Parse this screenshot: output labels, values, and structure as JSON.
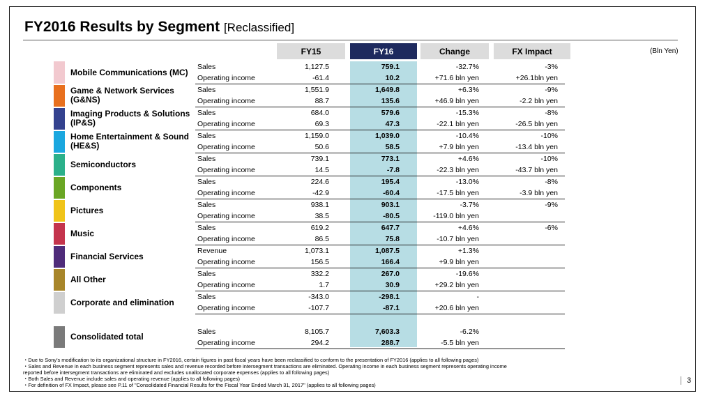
{
  "title": "FY2016  Results by Segment",
  "title_sub": "[Reclassified]",
  "unit": "(Bln Yen)",
  "headers": {
    "fy15": "FY15",
    "fy16": "FY16",
    "change": "Change",
    "fx": "FX Impact"
  },
  "segments": [
    {
      "name": "Mobile Communications (MC)",
      "color": "#f2c9cf",
      "rows": [
        {
          "metric": "Sales",
          "fy15": "1,127.5",
          "fy16": "759.1",
          "change": "-32.7%",
          "fx": "-3%"
        },
        {
          "metric": "Operating income",
          "fy15": "-61.4",
          "fy16": "10.2",
          "change": "+71.6 bln yen",
          "fx": "+26.1bln yen"
        }
      ]
    },
    {
      "name": "Game & Network Services (G&NS)",
      "color": "#e8701e",
      "rows": [
        {
          "metric": "Sales",
          "fy15": "1,551.9",
          "fy16": "1,649.8",
          "change": "+6.3%",
          "fx": "-9%"
        },
        {
          "metric": "Operating income",
          "fy15": "88.7",
          "fy16": "135.6",
          "change": "+46.9 bln yen",
          "fx": "-2.2 bln yen"
        }
      ]
    },
    {
      "name": "Imaging Products & Solutions (IP&S)",
      "color": "#34428f",
      "rows": [
        {
          "metric": "Sales",
          "fy15": "684.0",
          "fy16": "579.6",
          "change": "-15.3%",
          "fx": "-8%"
        },
        {
          "metric": "Operating income",
          "fy15": "69.3",
          "fy16": "47.3",
          "change": "-22.1 bln yen",
          "fx": "-26.5 bln yen"
        }
      ]
    },
    {
      "name": "Home Entertainment & Sound (HE&S)",
      "color": "#1aa7df",
      "rows": [
        {
          "metric": "Sales",
          "fy15": "1,159.0",
          "fy16": "1,039.0",
          "change": "-10.4%",
          "fx": "-10%"
        },
        {
          "metric": "Operating income",
          "fy15": "50.6",
          "fy16": "58.5",
          "change": "+7.9 bln yen",
          "fx": "-13.4 bln yen"
        }
      ]
    },
    {
      "name": "Semiconductors",
      "color": "#2bb08a",
      "rows": [
        {
          "metric": "Sales",
          "fy15": "739.1",
          "fy16": "773.1",
          "change": "+4.6%",
          "fx": "-10%"
        },
        {
          "metric": "Operating income",
          "fy15": "14.5",
          "fy16": "-7.8",
          "change": "-22.3 bln yen",
          "fx": "-43.7 bln yen"
        }
      ]
    },
    {
      "name": "Components",
      "color": "#6aa624",
      "rows": [
        {
          "metric": "Sales",
          "fy15": "224.6",
          "fy16": "195.4",
          "change": "-13.0%",
          "fx": "-8%"
        },
        {
          "metric": "Operating income",
          "fy15": "-42.9",
          "fy16": "-60.4",
          "change": "-17.5 bln yen",
          "fx": "-3.9 bln yen"
        }
      ]
    },
    {
      "name": "Pictures",
      "color": "#f0c419",
      "rows": [
        {
          "metric": "Sales",
          "fy15": "938.1",
          "fy16": "903.1",
          "change": "-3.7%",
          "fx": "-9%"
        },
        {
          "metric": "Operating income",
          "fy15": "38.5",
          "fy16": "-80.5",
          "change": "-119.0 bln yen",
          "fx": ""
        }
      ]
    },
    {
      "name": "Music",
      "color": "#c4344c",
      "rows": [
        {
          "metric": "Sales",
          "fy15": "619.2",
          "fy16": "647.7",
          "change": "+4.6%",
          "fx": "-6%"
        },
        {
          "metric": "Operating income",
          "fy15": "86.5",
          "fy16": "75.8",
          "change": "-10.7 bln yen",
          "fx": ""
        }
      ]
    },
    {
      "name": "Financial Services",
      "color": "#4f2c7a",
      "rows": [
        {
          "metric": "Revenue",
          "fy15": "1,073.1",
          "fy16": "1,087.5",
          "change": "+1.3%",
          "fx": ""
        },
        {
          "metric": "Operating income",
          "fy15": "156.5",
          "fy16": "166.4",
          "change": "+9.9 bln yen",
          "fx": ""
        }
      ]
    },
    {
      "name": "All Other",
      "color": "#a8862a",
      "rows": [
        {
          "metric": "Sales",
          "fy15": "332.2",
          "fy16": "267.0",
          "change": "-19.6%",
          "fx": ""
        },
        {
          "metric": "Operating income",
          "fy15": "1.7",
          "fy16": "30.9",
          "change": "+29.2 bln yen",
          "fx": ""
        }
      ]
    },
    {
      "name": "Corporate and elimination",
      "color": "#cfcfcf",
      "rows": [
        {
          "metric": "Sales",
          "fy15": "-343.0",
          "fy16": "-298.1",
          "change": "-",
          "fx": ""
        },
        {
          "metric": "Operating income",
          "fy15": "-107.7",
          "fy16": "-87.1",
          "change": "+20.6 bln yen",
          "fx": ""
        }
      ]
    }
  ],
  "total": {
    "name": "Consolidated total",
    "color": "#7a7a7a",
    "rows": [
      {
        "metric": "Sales",
        "fy15": "8,105.7",
        "fy16": "7,603.3",
        "change": "-6.2%",
        "fx": ""
      },
      {
        "metric": "Operating income",
        "fy15": "294.2",
        "fy16": "288.7",
        "change": "-5.5 bln yen",
        "fx": ""
      }
    ]
  },
  "notes": [
    "・Due to Sony's modification to its organizational structure in FY2016, certain figures in past fiscal years have been reclassified to conform to the presentation of FY2016 (applies to all following pages)",
    "・Sales and Revenue in each business segment represents sales and revenue recorded before intersegment transactions are eliminated. Operating income in each business segment represents operating income",
    "  reported before intersegment transactions are eliminated and excludes unallocated corporate expenses (applies to all following pages)",
    "・Both Sales and Revenue include sales and operating revenue (applies to all following pages)",
    "・For definition of FX Impact, please see P.11 of \"Consolidated Financial Results for the Fiscal Year Ended March 31, 2017\" (applies to all following pages)"
  ],
  "page_number": "3"
}
